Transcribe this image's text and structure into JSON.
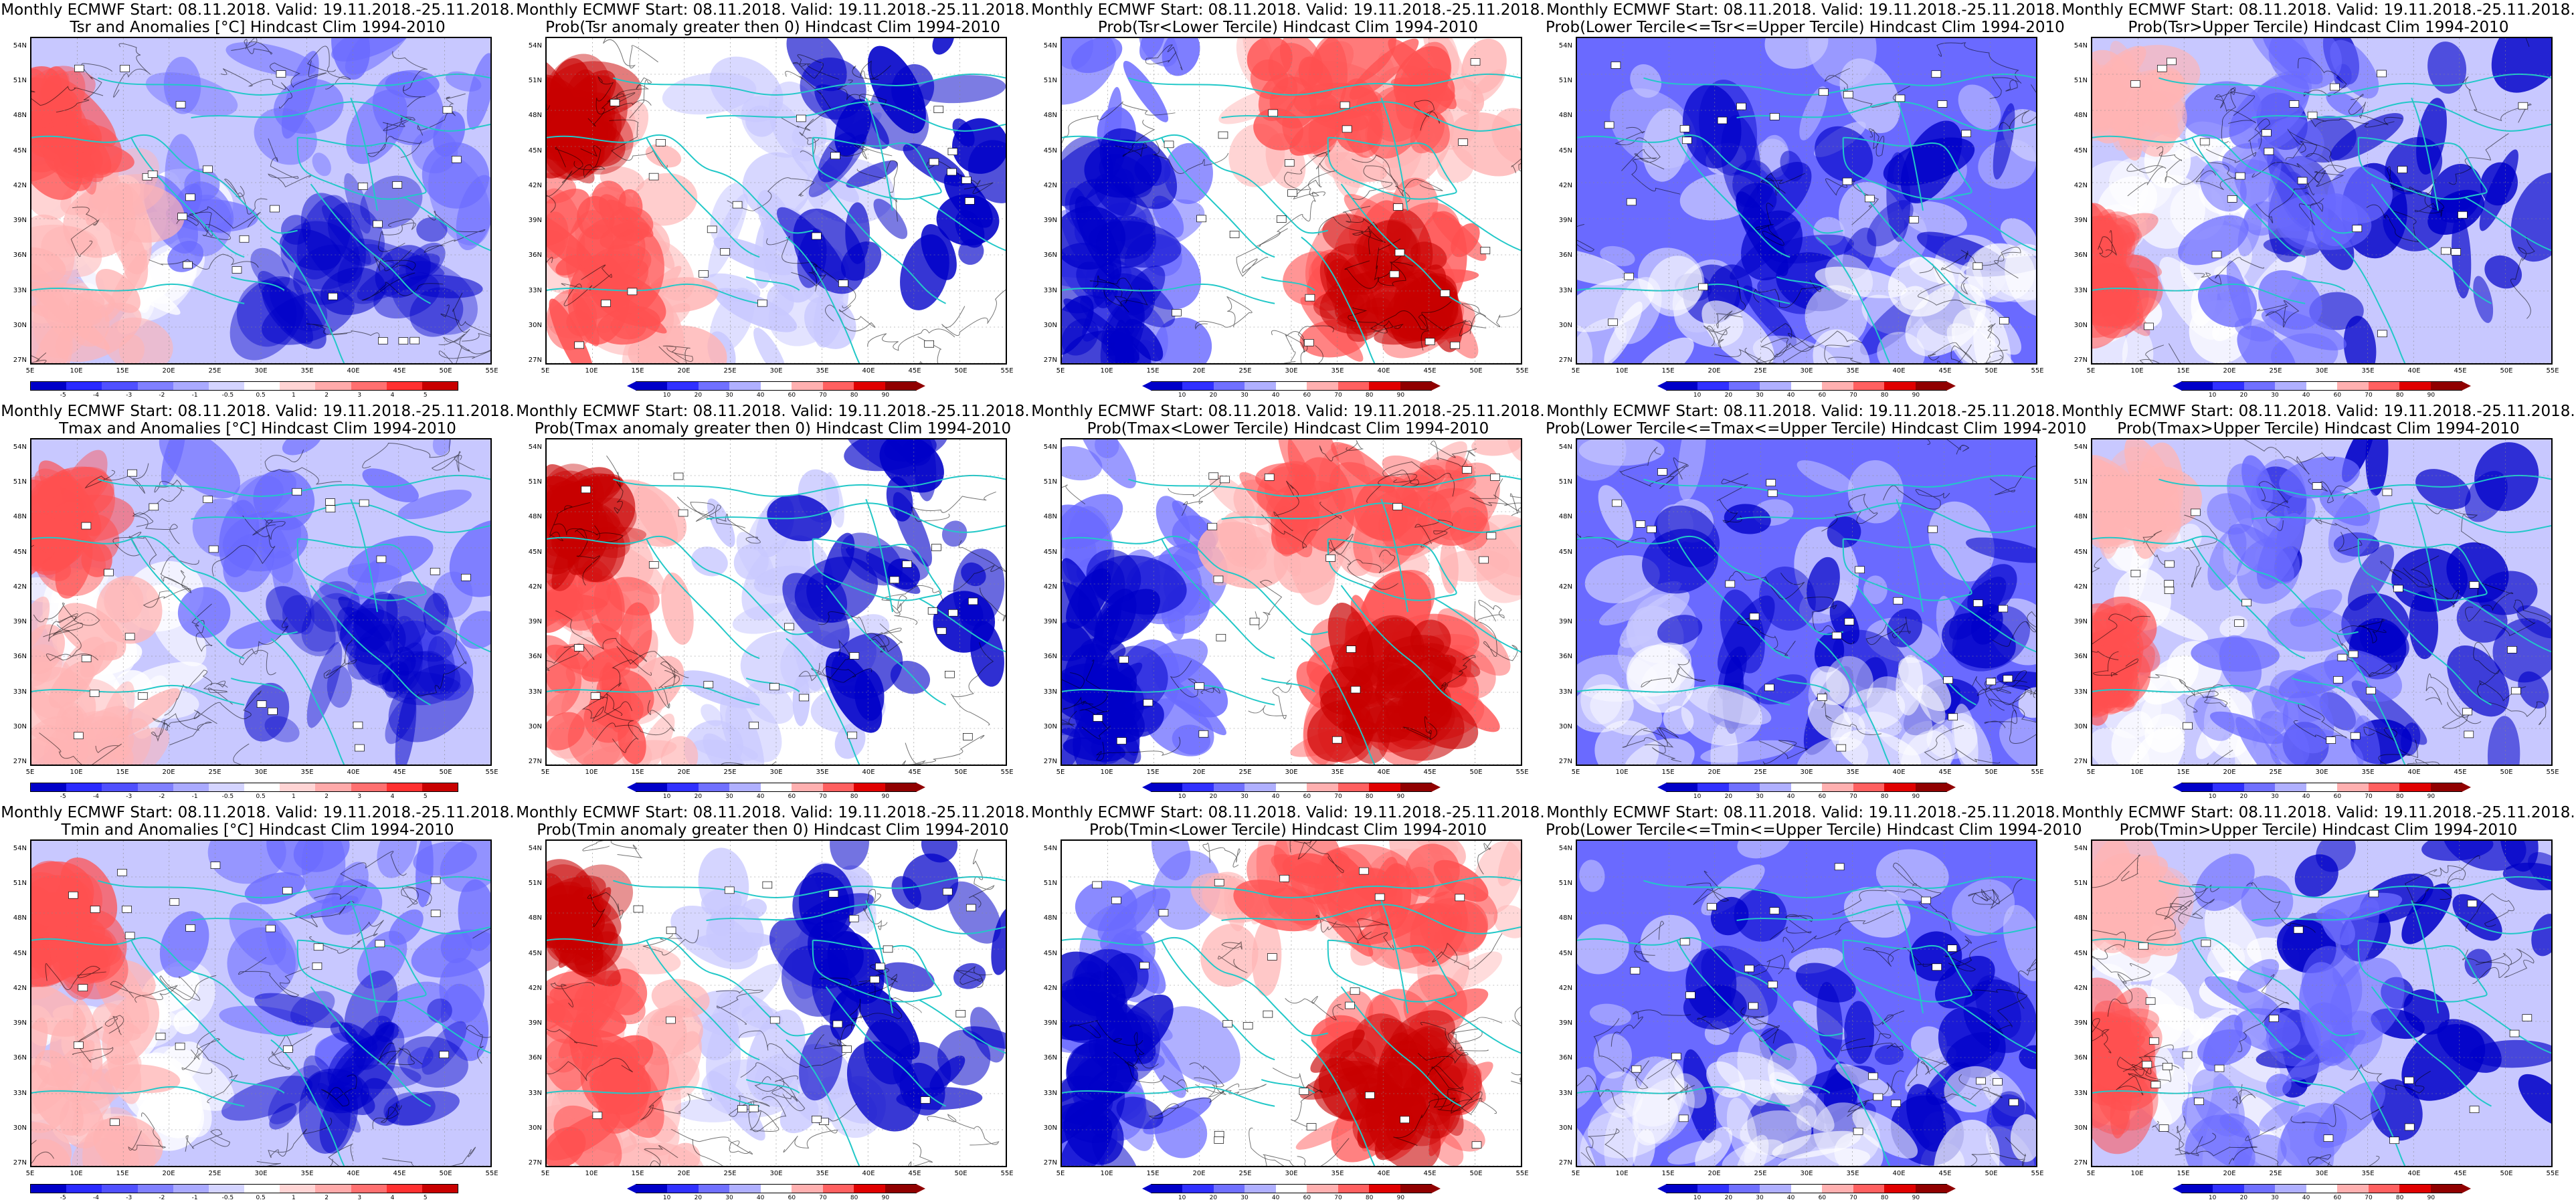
{
  "panels": [
    {
      "id": "r1c1",
      "title1": "Monthly ECMWF Start: 08.11.2018. Valid: 19.11.2018.-25.11.2018.",
      "title2": "Tsr and Anomalies [°C] Hindcast Clim 1994-2010",
      "type": "anomaly",
      "colorbar_ticks": [
        "-5",
        "-4",
        "-3",
        "-2",
        "-1",
        "-0.5",
        "0.5",
        "1",
        "2",
        "3",
        "4",
        "5"
      ],
      "color_scheme": "anom_warm_west"
    },
    {
      "id": "r1c2",
      "title1": "Monthly ECMWF Start: 08.11.2018. Valid: 19.11.2018.-25.11.2018.",
      "title2": "Prob(Tsr anomaly greater then 0) Hindcast Clim 1994-2010",
      "type": "probability",
      "colorbar_ticks": [
        "10",
        "20",
        "30",
        "40",
        "60",
        "70",
        "80",
        "90"
      ],
      "color_scheme": "prob_red_west"
    },
    {
      "id": "r1c3",
      "title1": "Monthly ECMWF Start: 08.11.2018. Valid: 19.11.2018.-25.11.2018.",
      "title2": "Prob(Tsr<Lower Tercile) Hindcast Clim 1994-2010",
      "type": "probability",
      "colorbar_ticks": [
        "10",
        "20",
        "30",
        "40",
        "60",
        "70",
        "80",
        "90"
      ],
      "color_scheme": "prob_red_east"
    },
    {
      "id": "r1c4",
      "title1": "Monthly ECMWF Start: 08.11.2018. Valid: 19.11.2018.-25.11.2018.",
      "title2": "Prob(Lower Tercile<=Tsr<=Upper Tercile) Hindcast Clim 1994-2010",
      "type": "probability",
      "colorbar_ticks": [
        "10",
        "20",
        "30",
        "40",
        "60",
        "70",
        "80",
        "90"
      ],
      "color_scheme": "prob_blue_all"
    },
    {
      "id": "r1c5",
      "title1": "Monthly ECMWF Start: 08.11.2018. Valid: 19.11.2018.-25.11.2018.",
      "title2": "Prob(Tsr>Upper Tercile) Hindcast Clim 1994-2010",
      "type": "probability",
      "colorbar_ticks": [
        "10",
        "20",
        "30",
        "40",
        "60",
        "70",
        "80",
        "90"
      ],
      "color_scheme": "prob_blue_east"
    },
    {
      "id": "r2c1",
      "title1": "Monthly ECMWF Start: 08.11.2018. Valid: 19.11.2018.-25.11.2018.",
      "title2": "Tmax and Anomalies [°C] Hindcast Clim 1994-2010",
      "type": "anomaly",
      "colorbar_ticks": [
        "-5",
        "-4",
        "-3",
        "-2",
        "-1",
        "-0.5",
        "0.5",
        "1",
        "2",
        "3",
        "4",
        "5"
      ],
      "color_scheme": "anom_warm_west"
    },
    {
      "id": "r2c2",
      "title1": "Monthly ECMWF Start: 08.11.2018. Valid: 19.11.2018.-25.11.2018.",
      "title2": "Prob(Tmax anomaly greater then 0) Hindcast Clim 1994-2010",
      "type": "probability",
      "colorbar_ticks": [
        "10",
        "20",
        "30",
        "40",
        "60",
        "70",
        "80",
        "90"
      ],
      "color_scheme": "prob_red_west"
    },
    {
      "id": "r2c3",
      "title1": "Monthly ECMWF Start: 08.11.2018. Valid: 19.11.2018.-25.11.2018.",
      "title2": "Prob(Tmax<Lower Tercile) Hindcast Clim 1994-2010",
      "type": "probability",
      "colorbar_ticks": [
        "10",
        "20",
        "30",
        "40",
        "60",
        "70",
        "80",
        "90"
      ],
      "color_scheme": "prob_red_east"
    },
    {
      "id": "r2c4",
      "title1": "Monthly ECMWF Start: 08.11.2018. Valid: 19.11.2018.-25.11.2018.",
      "title2": "Prob(Lower Tercile<=Tmax<=Upper Tercile) Hindcast Clim 1994-2010",
      "type": "probability",
      "colorbar_ticks": [
        "10",
        "20",
        "30",
        "40",
        "60",
        "70",
        "80",
        "90"
      ],
      "color_scheme": "prob_blue_all"
    },
    {
      "id": "r2c5",
      "title1": "Monthly ECMWF Start: 08.11.2018. Valid: 19.11.2018.-25.11.2018.",
      "title2": "Prob(Tmax>Upper Tercile) Hindcast Clim 1994-2010",
      "type": "probability",
      "colorbar_ticks": [
        "10",
        "20",
        "30",
        "40",
        "60",
        "70",
        "80",
        "90"
      ],
      "color_scheme": "prob_blue_east"
    },
    {
      "id": "r3c1",
      "title1": "Monthly ECMWF Start: 08.11.2018. Valid: 19.11.2018.-25.11.2018.",
      "title2": "Tmin and Anomalies [°C] Hindcast Clim 1994-2010",
      "type": "anomaly",
      "colorbar_ticks": [
        "-5",
        "-4",
        "-3",
        "-2",
        "-1",
        "-0.5",
        "0.5",
        "1",
        "2",
        "3",
        "4",
        "5"
      ],
      "color_scheme": "anom_warm_west"
    },
    {
      "id": "r3c2",
      "title1": "Monthly ECMWF Start: 08.11.2018. Valid: 19.11.2018.-25.11.2018.",
      "title2": "Prob(Tmin anomaly greater then 0) Hindcast Clim 1994-2010",
      "type": "probability",
      "colorbar_ticks": [
        "10",
        "20",
        "30",
        "40",
        "60",
        "70",
        "80",
        "90"
      ],
      "color_scheme": "prob_red_west"
    },
    {
      "id": "r3c3",
      "title1": "Monthly ECMWF Start: 08.11.2018. Valid: 19.11.2018.-25.11.2018.",
      "title2": "Prob(Tmin<Lower Tercile) Hindcast Clim 1994-2010",
      "type": "probability",
      "colorbar_ticks": [
        "10",
        "20",
        "30",
        "40",
        "60",
        "70",
        "80",
        "90"
      ],
      "color_scheme": "prob_red_east"
    },
    {
      "id": "r3c4",
      "title1": "Monthly ECMWF Start: 08.11.2018. Valid: 19.11.2018.-25.11.2018.",
      "title2": "Prob(Lower Tercile<=Tmin<=Upper Tercile) Hindcast Clim 1994-2010",
      "type": "probability",
      "colorbar_ticks": [
        "10",
        "20",
        "30",
        "40",
        "60",
        "70",
        "80",
        "90"
      ],
      "color_scheme": "prob_blue_all"
    },
    {
      "id": "r3c5",
      "title1": "Monthly ECMWF Start: 08.11.2018. Valid: 19.11.2018.-25.11.2018.",
      "title2": "Prob(Tmin>Upper Tercile) Hindcast Clim 1994-2010",
      "type": "probability",
      "colorbar_ticks": [
        "10",
        "20",
        "30",
        "40",
        "60",
        "70",
        "80",
        "90"
      ],
      "color_scheme": "prob_blue_east"
    }
  ],
  "lat_labels": [
    "54N",
    "51N",
    "48N",
    "45N",
    "42N",
    "39N",
    "36N",
    "33N",
    "30N",
    "27N"
  ],
  "lon_labels": [
    "5E",
    "10E",
    "15E",
    "20E",
    "25E",
    "30E",
    "35E",
    "40E",
    "45E",
    "50E",
    "55E"
  ],
  "colors": {
    "coast": "#22c8c8",
    "contour": "#000000",
    "deep_blue": "#0000c8",
    "mid_blue": "#6a6aff",
    "light_blue": "#c8c8ff",
    "white": "#ffffff",
    "light_red": "#ffb4b4",
    "mid_red": "#ff5050",
    "deep_red": "#c80000",
    "anomaly_ramp": [
      "#0000c8",
      "#2a2aff",
      "#5050ff",
      "#8080ff",
      "#aaaaff",
      "#d4d4ff",
      "#ffffff",
      "#ffd4d4",
      "#ffaaaa",
      "#ff7070",
      "#ff3030",
      "#c80000"
    ],
    "prob_ramp": [
      "#0000c8",
      "#3030ff",
      "#7070ff",
      "#b0b0ff",
      "#ffffff",
      "#ffb0b0",
      "#ff6060",
      "#e00000",
      "#900000"
    ]
  }
}
